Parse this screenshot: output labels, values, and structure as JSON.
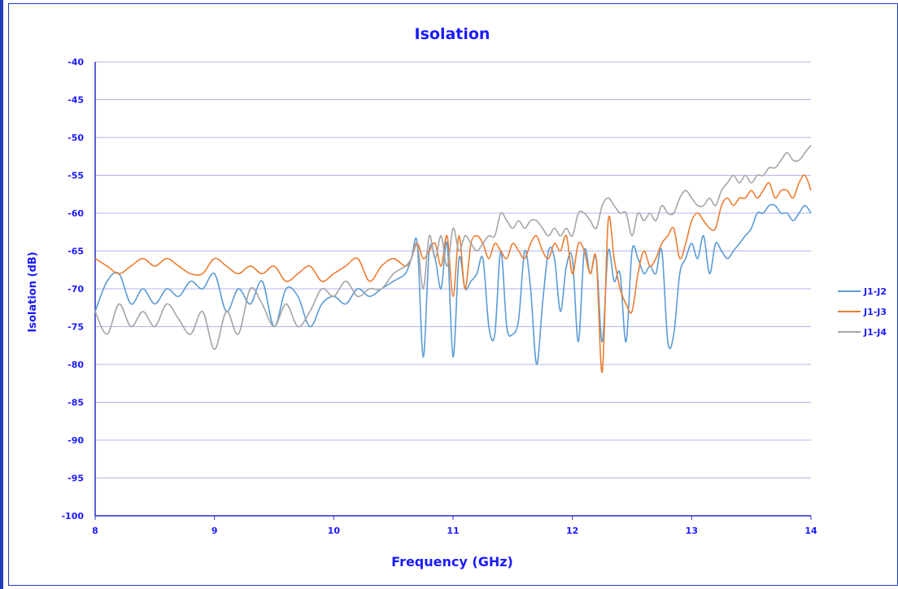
{
  "chart_data": {
    "type": "line",
    "title": "Isolation",
    "xlabel": "Frequency (GHz)",
    "ylabel": "Isolation (dB)",
    "xlim": [
      8,
      14
    ],
    "ylim": [
      -100,
      -40
    ],
    "xticks": [
      "8",
      "9",
      "10",
      "11",
      "12",
      "13",
      "14"
    ],
    "yticks": [
      "-40",
      "-45",
      "-50",
      "-55",
      "-60",
      "-65",
      "-70",
      "-75",
      "-80",
      "-85",
      "-90",
      "-95",
      "-100"
    ],
    "grid": "horizontal",
    "legend_position": "right",
    "colors": {
      "text": "#1a1aff",
      "grid": "#b4b4f0",
      "axis": "#2a2acc",
      "series": [
        "#5b9bd5",
        "#ed7d31",
        "#a5a5a5"
      ]
    },
    "series": [
      {
        "name": "J1-J2",
        "x": [
          8.0,
          8.1,
          8.2,
          8.3,
          8.4,
          8.5,
          8.6,
          8.7,
          8.8,
          8.9,
          9.0,
          9.1,
          9.2,
          9.3,
          9.4,
          9.5,
          9.6,
          9.7,
          9.8,
          9.9,
          10.0,
          10.1,
          10.2,
          10.3,
          10.4,
          10.5,
          10.6,
          10.65,
          10.7,
          10.75,
          10.8,
          10.85,
          10.9,
          10.95,
          11.0,
          11.05,
          11.1,
          11.15,
          11.2,
          11.25,
          11.3,
          11.35,
          11.4,
          11.45,
          11.5,
          11.55,
          11.6,
          11.65,
          11.7,
          11.75,
          11.8,
          11.85,
          11.9,
          11.95,
          12.0,
          12.05,
          12.1,
          12.15,
          12.2,
          12.25,
          12.3,
          12.35,
          12.4,
          12.45,
          12.5,
          12.55,
          12.6,
          12.65,
          12.7,
          12.75,
          12.8,
          12.85,
          12.9,
          12.95,
          13.0,
          13.05,
          13.1,
          13.15,
          13.2,
          13.25,
          13.3,
          13.35,
          13.4,
          13.45,
          13.5,
          13.55,
          13.6,
          13.65,
          13.7,
          13.75,
          13.8,
          13.85,
          13.9,
          13.95,
          14.0
        ],
        "y": [
          -73,
          -69,
          -68,
          -72,
          -70,
          -72,
          -70,
          -71,
          -69,
          -70,
          -68,
          -73,
          -70,
          -72,
          -69,
          -75,
          -70,
          -71,
          -75,
          -72,
          -71,
          -72,
          -70,
          -71,
          -70,
          -69,
          -68,
          -66,
          -64,
          -79,
          -65,
          -66,
          -70,
          -64,
          -79,
          -66,
          -70,
          -69,
          -68,
          -66,
          -75,
          -76,
          -65,
          -75,
          -76,
          -74,
          -65,
          -70,
          -80,
          -72,
          -65,
          -66,
          -73,
          -67,
          -66,
          -77,
          -65,
          -68,
          -66,
          -77,
          -65,
          -69,
          -68,
          -77,
          -65,
          -66,
          -68,
          -67,
          -68,
          -65,
          -77,
          -76,
          -68,
          -66,
          -64,
          -66,
          -63,
          -68,
          -64,
          -65,
          -66,
          -65,
          -64,
          -63,
          -62,
          -60,
          -60,
          -59,
          -59,
          -60,
          -60,
          -61,
          -60,
          -59,
          -60
        ]
      },
      {
        "name": "J1-J3",
        "x": [
          8.0,
          8.1,
          8.2,
          8.3,
          8.4,
          8.5,
          8.6,
          8.7,
          8.8,
          8.9,
          9.0,
          9.1,
          9.2,
          9.3,
          9.4,
          9.5,
          9.6,
          9.7,
          9.8,
          9.9,
          10.0,
          10.1,
          10.2,
          10.3,
          10.4,
          10.5,
          10.6,
          10.65,
          10.7,
          10.75,
          10.8,
          10.85,
          10.9,
          10.95,
          11.0,
          11.05,
          11.1,
          11.15,
          11.2,
          11.25,
          11.3,
          11.35,
          11.4,
          11.45,
          11.5,
          11.55,
          11.6,
          11.65,
          11.7,
          11.75,
          11.8,
          11.85,
          11.9,
          11.95,
          12.0,
          12.05,
          12.1,
          12.15,
          12.2,
          12.25,
          12.3,
          12.35,
          12.4,
          12.45,
          12.5,
          12.55,
          12.6,
          12.65,
          12.7,
          12.75,
          12.8,
          12.85,
          12.9,
          12.95,
          13.0,
          13.05,
          13.1,
          13.15,
          13.2,
          13.25,
          13.3,
          13.35,
          13.4,
          13.45,
          13.5,
          13.55,
          13.6,
          13.65,
          13.7,
          13.75,
          13.8,
          13.85,
          13.9,
          13.95,
          14.0
        ],
        "y": [
          -66,
          -67,
          -68,
          -67,
          -66,
          -67,
          -66,
          -67,
          -68,
          -68,
          -66,
          -67,
          -68,
          -67,
          -68,
          -67,
          -69,
          -68,
          -67,
          -69,
          -68,
          -67,
          -66,
          -69,
          -67,
          -66,
          -67,
          -66,
          -64,
          -66,
          -65,
          -64,
          -67,
          -63,
          -71,
          -63,
          -70,
          -64,
          -63,
          -64,
          -66,
          -64,
          -65,
          -66,
          -64,
          -65,
          -66,
          -64,
          -63,
          -65,
          -66,
          -64,
          -65,
          -63,
          -68,
          -64,
          -65,
          -68,
          -66,
          -81,
          -61,
          -66,
          -70,
          -72,
          -73,
          -68,
          -65,
          -67,
          -66,
          -64,
          -63,
          -62,
          -66,
          -64,
          -61,
          -60,
          -61,
          -62,
          -62,
          -59,
          -58,
          -59,
          -58,
          -58,
          -57,
          -58,
          -57,
          -56,
          -58,
          -57,
          -57,
          -58,
          -56,
          -55,
          -57
        ]
      },
      {
        "name": "J1-J4",
        "x": [
          8.0,
          8.1,
          8.2,
          8.3,
          8.4,
          8.5,
          8.6,
          8.7,
          8.8,
          8.9,
          9.0,
          9.1,
          9.2,
          9.3,
          9.4,
          9.5,
          9.6,
          9.7,
          9.8,
          9.9,
          10.0,
          10.1,
          10.2,
          10.3,
          10.4,
          10.5,
          10.6,
          10.65,
          10.7,
          10.75,
          10.8,
          10.85,
          10.9,
          10.95,
          11.0,
          11.05,
          11.1,
          11.15,
          11.2,
          11.25,
          11.3,
          11.35,
          11.4,
          11.45,
          11.5,
          11.55,
          11.6,
          11.65,
          11.7,
          11.75,
          11.8,
          11.85,
          11.9,
          11.95,
          12.0,
          12.05,
          12.1,
          12.15,
          12.2,
          12.25,
          12.3,
          12.35,
          12.4,
          12.45,
          12.5,
          12.55,
          12.6,
          12.65,
          12.7,
          12.75,
          12.8,
          12.85,
          12.9,
          12.95,
          13.0,
          13.05,
          13.1,
          13.15,
          13.2,
          13.25,
          13.3,
          13.35,
          13.4,
          13.45,
          13.5,
          13.55,
          13.6,
          13.65,
          13.7,
          13.75,
          13.8,
          13.85,
          13.9,
          13.95,
          14.0
        ],
        "y": [
          -73,
          -76,
          -72,
          -75,
          -73,
          -75,
          -72,
          -74,
          -76,
          -73,
          -78,
          -73,
          -76,
          -70,
          -72,
          -75,
          -72,
          -75,
          -73,
          -70,
          -71,
          -69,
          -71,
          -70,
          -70,
          -68,
          -67,
          -66,
          -64,
          -70,
          -63,
          -66,
          -63,
          -67,
          -62,
          -65,
          -63,
          -64,
          -65,
          -64,
          -63,
          -63,
          -60,
          -61,
          -62,
          -61,
          -62,
          -61,
          -61,
          -62,
          -63,
          -62,
          -63,
          -62,
          -63,
          -60,
          -60,
          -61,
          -62,
          -59,
          -58,
          -59,
          -60,
          -60,
          -63,
          -60,
          -61,
          -60,
          -61,
          -59,
          -60,
          -60,
          -58,
          -57,
          -58,
          -59,
          -59,
          -58,
          -59,
          -57,
          -56,
          -55,
          -56,
          -55,
          -56,
          -55,
          -55,
          -54,
          -54,
          -53,
          -52,
          -53,
          -53,
          -52,
          -51
        ]
      }
    ]
  }
}
